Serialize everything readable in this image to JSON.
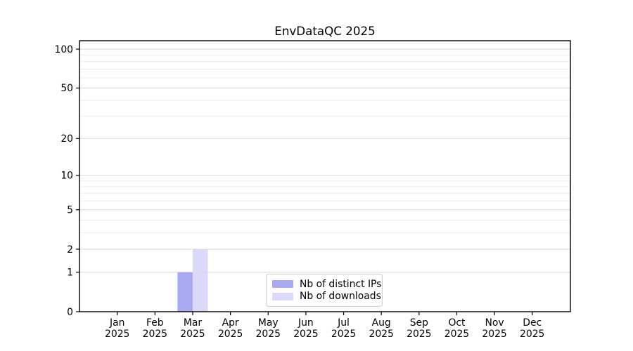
{
  "chart_data": {
    "type": "bar",
    "title": "EnvDataQC 2025",
    "x_year": "2025",
    "categories": [
      "Jan",
      "Feb",
      "Mar",
      "Apr",
      "May",
      "Jun",
      "Jul",
      "Aug",
      "Sep",
      "Oct",
      "Nov",
      "Dec"
    ],
    "series": [
      {
        "name": "Nb of distinct IPs",
        "color": "#a9a9f2",
        "values": [
          0,
          0,
          1,
          0,
          0,
          0,
          0,
          0,
          0,
          0,
          0,
          0
        ]
      },
      {
        "name": "Nb of downloads",
        "color": "#dadaf8",
        "values": [
          0,
          0,
          2,
          0,
          0,
          0,
          0,
          0,
          0,
          0,
          0,
          0
        ]
      }
    ],
    "xlabel": "",
    "ylabel": "",
    "y_axis": {
      "scale": "symlog",
      "major_ticks": [
        0,
        1,
        2,
        5,
        10,
        20,
        50,
        100
      ],
      "minor_gridlines": [
        3,
        4,
        6,
        7,
        8,
        9,
        30,
        40,
        60,
        70,
        80,
        90,
        110
      ],
      "ylim": [
        0,
        116
      ]
    },
    "legend": {
      "position": "lower-center-inside"
    },
    "grid": true,
    "colors": {
      "grid_major": "#d6d6d6",
      "grid_minor": "#ebebeb",
      "axis": "#000000",
      "background": "#ffffff"
    }
  }
}
